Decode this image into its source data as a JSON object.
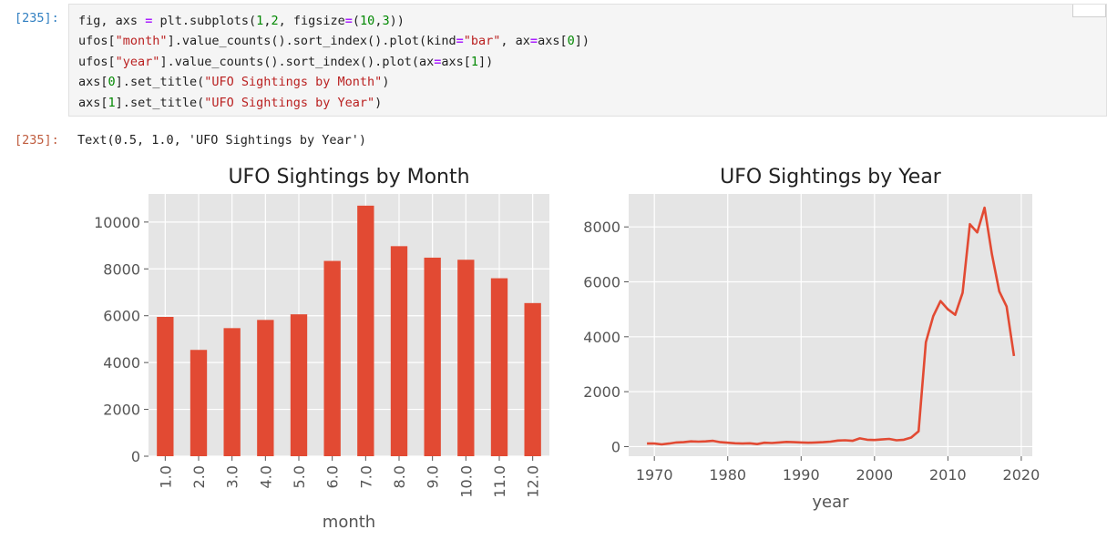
{
  "input_cell": {
    "prompt": "[235]:",
    "code_lines": [
      "fig, axs = plt.subplots(1,2, figsize=(10,3))",
      "ufos[\"month\"].value_counts().sort_index().plot(kind=\"bar\", ax=axs[0])",
      "ufos[\"year\"].value_counts().sort_index().plot(ax=axs[1])",
      "axs[0].set_title(\"UFO Sightings by Month\")",
      "axs[1].set_title(\"UFO Sightings by Year\")"
    ]
  },
  "output_cell": {
    "prompt": "[235]:",
    "text": "Text(0.5, 1.0, 'UFO Sightings by Year')"
  },
  "colors": {
    "accent": "#e24a33",
    "plot_bg": "#e5e5e5",
    "grid": "#ffffff",
    "tick_text": "#555555",
    "in_prompt": "#307fc1",
    "out_prompt": "#bf5b3d"
  },
  "chart_data": [
    {
      "type": "bar",
      "title": "UFO Sightings by Month",
      "xlabel": "month",
      "ylabel": "",
      "categories": [
        "1.0",
        "2.0",
        "3.0",
        "4.0",
        "5.0",
        "6.0",
        "7.0",
        "8.0",
        "9.0",
        "10.0",
        "11.0",
        "12.0"
      ],
      "values": [
        5950,
        4540,
        5470,
        5820,
        6060,
        8340,
        10700,
        8970,
        8480,
        8390,
        7600,
        6540
      ],
      "ylim": [
        0,
        11200
      ],
      "yticks": [
        0,
        2000,
        4000,
        6000,
        8000,
        10000
      ],
      "grid": true,
      "style": "ggplot"
    },
    {
      "type": "line",
      "title": "UFO Sightings by Year",
      "xlabel": "year",
      "ylabel": "",
      "x": [
        1969,
        1970,
        1971,
        1972,
        1973,
        1974,
        1975,
        1976,
        1977,
        1978,
        1979,
        1980,
        1981,
        1982,
        1983,
        1984,
        1985,
        1986,
        1987,
        1988,
        1989,
        1990,
        1991,
        1992,
        1993,
        1994,
        1995,
        1996,
        1997,
        1998,
        1999,
        2000,
        2001,
        2002,
        2003,
        2004,
        2005,
        2006,
        2007,
        2008,
        2009,
        2010,
        2011,
        2012,
        2013,
        2014,
        2015,
        2016,
        2017,
        2018,
        2019
      ],
      "y": [
        110,
        110,
        80,
        110,
        150,
        160,
        190,
        180,
        190,
        210,
        160,
        140,
        120,
        110,
        120,
        90,
        140,
        130,
        150,
        170,
        160,
        150,
        140,
        150,
        160,
        180,
        220,
        230,
        210,
        300,
        250,
        240,
        260,
        280,
        230,
        250,
        330,
        560,
        3800,
        4750,
        5300,
        5000,
        4800,
        5600,
        8100,
        7800,
        8700,
        7000,
        5650,
        5100,
        3300
      ],
      "xlim": [
        1966.5,
        2021.5
      ],
      "ylim": [
        -350,
        9200
      ],
      "xticks": [
        1970,
        1980,
        1990,
        2000,
        2010,
        2020
      ],
      "yticks": [
        0,
        2000,
        4000,
        6000,
        8000
      ],
      "grid": true,
      "style": "ggplot"
    }
  ]
}
